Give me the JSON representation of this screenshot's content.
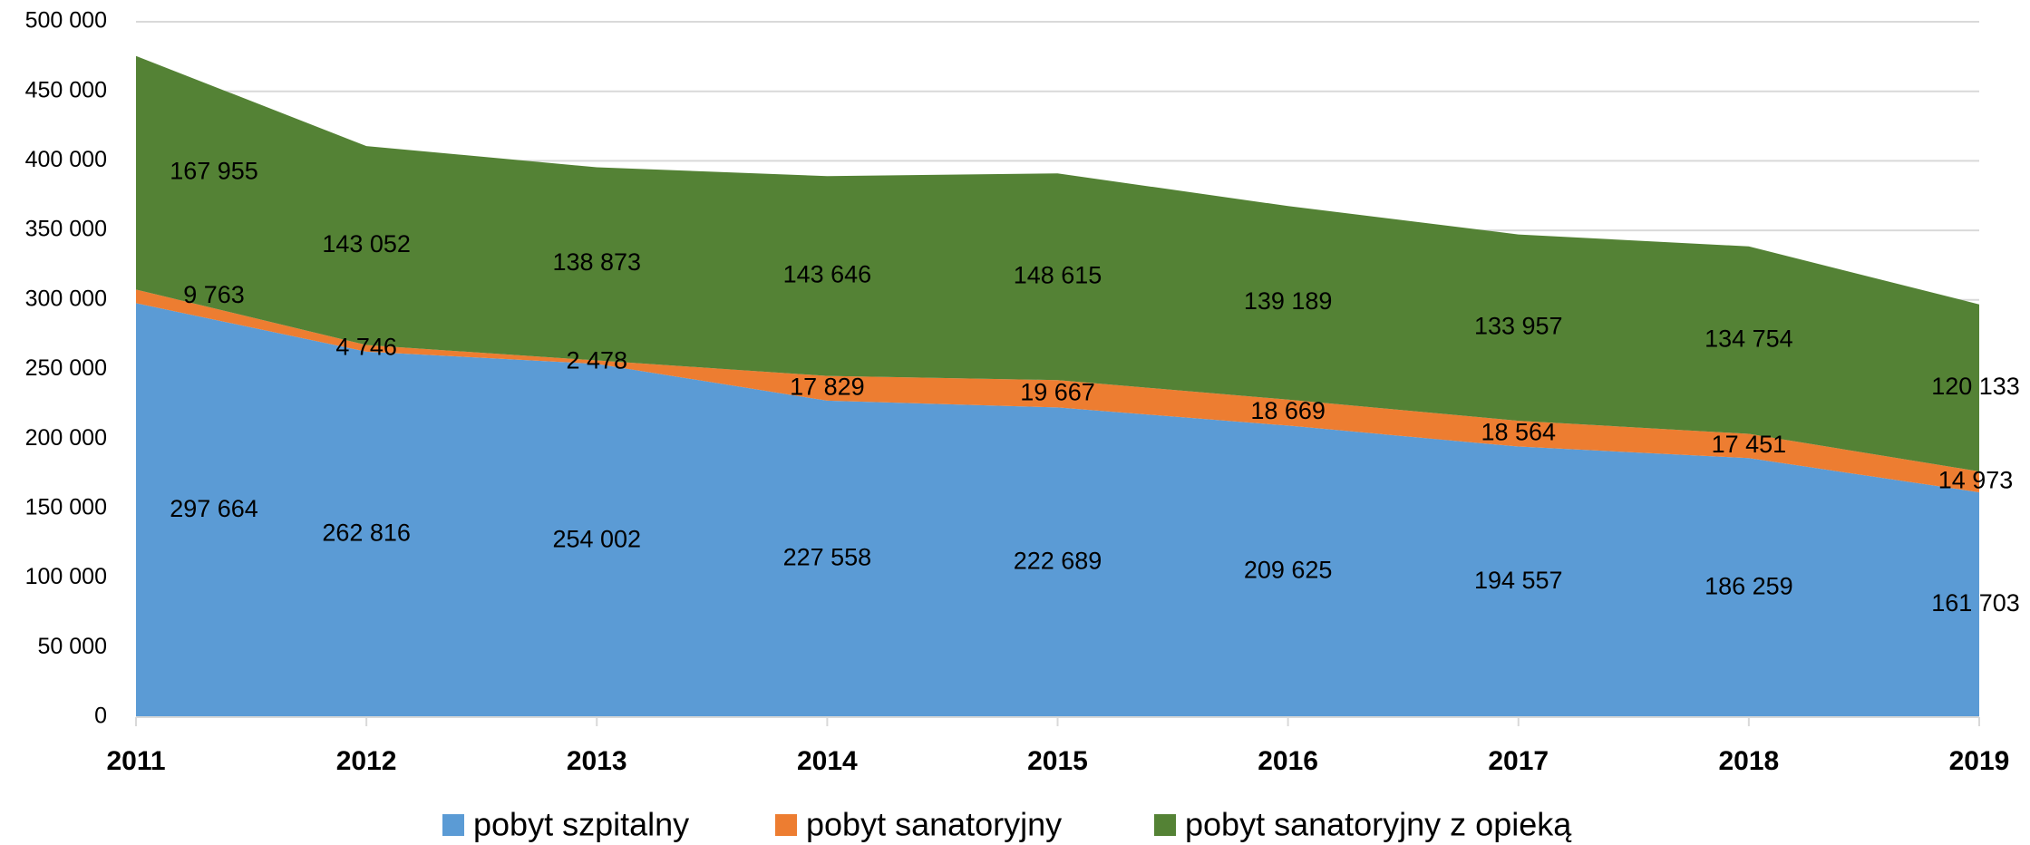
{
  "chart_data": {
    "type": "stacked_area",
    "categories": [
      "2011",
      "2012",
      "2013",
      "2014",
      "2015",
      "2016",
      "2017",
      "2018",
      "2019"
    ],
    "series": [
      {
        "name": "pobyt szpitalny",
        "color": "#5b9bd5",
        "values": [
          297664,
          262816,
          254002,
          227558,
          222689,
          209625,
          194557,
          186259,
          161703
        ],
        "value_labels": [
          "297 664",
          "262 816",
          "254 002",
          "227 558",
          "222 689",
          "209 625",
          "194 557",
          "186 259",
          "161 703"
        ]
      },
      {
        "name": "pobyt sanatoryjny",
        "color": "#ed7d31",
        "values": [
          9763,
          4746,
          2478,
          17829,
          19667,
          18669,
          18564,
          17451,
          14973
        ],
        "value_labels": [
          "9 763",
          "4 746",
          "2 478",
          "17 829",
          "19 667",
          "18 669",
          "18 564",
          "17 451",
          "14 973"
        ]
      },
      {
        "name": "pobyt sanatoryjny z opieką",
        "color": "#548235",
        "values": [
          167955,
          143052,
          138873,
          143646,
          148615,
          139189,
          133957,
          134754,
          120133
        ],
        "value_labels": [
          "167 955",
          "143 052",
          "138 873",
          "143 646",
          "148 615",
          "139 189",
          "133 957",
          "134 754",
          "120 133"
        ]
      }
    ],
    "ylim": [
      0,
      500000
    ],
    "yticks": [
      0,
      {
        "value": 50000,
        "label": "50 000"
      },
      {
        "value": 100000,
        "label": "100 000"
      },
      {
        "value": 150000,
        "label": "150 000"
      },
      {
        "value": 200000,
        "label": "200 000"
      },
      {
        "value": 250000,
        "label": "250 000"
      },
      {
        "value": 300000,
        "label": "300 000"
      },
      {
        "value": 350000,
        "label": "350 000"
      },
      {
        "value": 400000,
        "label": "400 000"
      },
      {
        "value": 450000,
        "label": "450 000"
      },
      {
        "value": 500000,
        "label": "500 000"
      }
    ],
    "grid": true,
    "legend": "bottom"
  }
}
